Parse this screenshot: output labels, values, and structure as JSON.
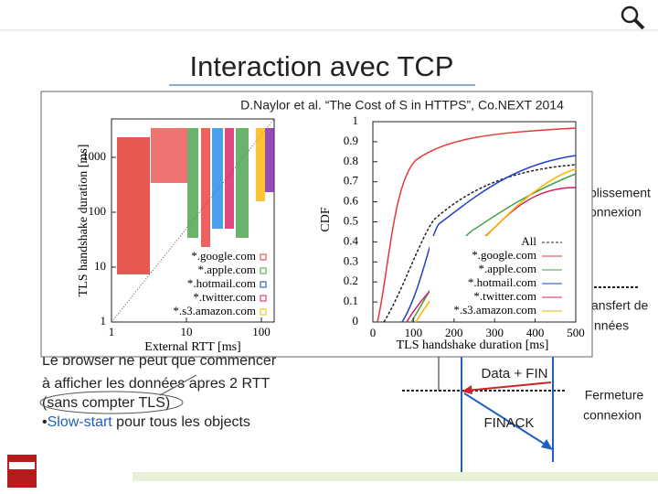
{
  "title": "Interaction avec TCP",
  "figure": {
    "caption": "D.Naylor et al. “The Cost of S in HTTPS”, Co.NEXT 2014",
    "scatter": {
      "y_label": "TLS handshake duration [ms]",
      "x_label": "External RTT [ms]",
      "yticks": [
        "1",
        "10",
        "100",
        "1000"
      ],
      "xticks": [
        "1",
        "10",
        "100"
      ],
      "legend": [
        "*.google.com",
        "*.apple.com",
        "*.hotmail.com",
        "*.twitter.com",
        "*.s3.amazon.com"
      ]
    },
    "cdf": {
      "y_label": "CDF",
      "x_label": "TLS handshake duration [ms]",
      "yticks": [
        "0",
        "0.1",
        "0.2",
        "0.3",
        "0.4",
        "0.5",
        "0.6",
        "0.7",
        "0.8",
        "0.9",
        "1"
      ],
      "xticks": [
        "0",
        "100",
        "200",
        "300",
        "400",
        "500"
      ],
      "legend": [
        "All",
        "*.google.com",
        "*.apple.com",
        "*.hotmail.com",
        "*.twitter.com",
        "*.s3.amazon.com"
      ]
    }
  },
  "side_labels": [
    "blissement",
    "onnexion",
    "ansfert de",
    "nnées",
    "Fermeture",
    "connexion"
  ],
  "body": {
    "line1": "Le browser ne peut que commencer",
    "line2": "à afficher les données apres 2 RTT",
    "line3": "(sans compter TLS)",
    "bullet_highlight": "Slow-start",
    "bullet_rest": " pour tous les objects"
  },
  "diagram": {
    "data_fin": "Data + FIN",
    "finack": "FINACK"
  }
}
